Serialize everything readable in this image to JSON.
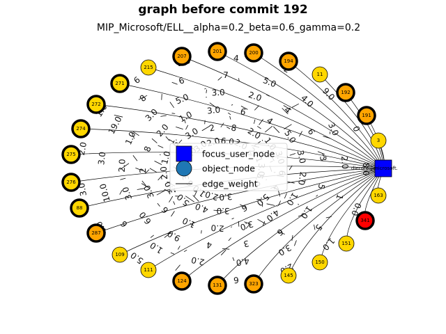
{
  "title": "graph before commit 192",
  "subtitle": "MIP_Microsoft/ELL__alpha=0.2_beta=0.6_gamma=0.2",
  "legend": [
    {
      "label": "focus_user_node",
      "kind": "square",
      "color": "#0000ff"
    },
    {
      "label": "object_node",
      "kind": "circle",
      "color": "#1f77b4"
    },
    {
      "label": "edge_weight",
      "kind": "line",
      "color": "#000000"
    }
  ],
  "focus_node": {
    "label": "dierdre@microsoft.",
    "color": "#0000ff"
  },
  "nodes": [
    {
      "id": "201",
      "fill": "#ffa500",
      "ring": true
    },
    {
      "id": "200",
      "fill": "#ffa500",
      "ring": true
    },
    {
      "id": "194",
      "fill": "#ffa500",
      "ring": true
    },
    {
      "id": "11",
      "fill": "#ffd700",
      "ring": false
    },
    {
      "id": "192",
      "fill": "#ffa500",
      "ring": true
    },
    {
      "id": "191",
      "fill": "#ffa500",
      "ring": true
    },
    {
      "id": "3",
      "fill": "#ffd700",
      "ring": false
    },
    {
      "id": "163",
      "fill": "#ffd700",
      "ring": false
    },
    {
      "id": "341",
      "fill": "#ff0000",
      "ring": true
    },
    {
      "id": "151",
      "fill": "#ffd700",
      "ring": false
    },
    {
      "id": "150",
      "fill": "#ffd700",
      "ring": false
    },
    {
      "id": "145",
      "fill": "#ffd700",
      "ring": false
    },
    {
      "id": "323",
      "fill": "#ffa500",
      "ring": true
    },
    {
      "id": "131",
      "fill": "#ffa500",
      "ring": true
    },
    {
      "id": "124",
      "fill": "#ffa500",
      "ring": true
    },
    {
      "id": "111",
      "fill": "#ffd700",
      "ring": false
    },
    {
      "id": "109",
      "fill": "#ffd700",
      "ring": false
    },
    {
      "id": "287",
      "fill": "#ffa500",
      "ring": true
    },
    {
      "id": "88",
      "fill": "#ffd700",
      "ring": true
    },
    {
      "id": "276",
      "fill": "#ffd700",
      "ring": true
    },
    {
      "id": "275",
      "fill": "#ffd700",
      "ring": true
    },
    {
      "id": "274",
      "fill": "#ffd700",
      "ring": true
    },
    {
      "id": "272",
      "fill": "#ffd700",
      "ring": true
    },
    {
      "id": "271",
      "fill": "#ffd700",
      "ring": true
    },
    {
      "id": "215",
      "fill": "#ffd700",
      "ring": false
    },
    {
      "id": "207",
      "fill": "#ffa500",
      "ring": true
    }
  ],
  "edge_weight_labels": [
    "8.0",
    "0.0",
    "1.0",
    "2.0",
    "6",
    "7.0",
    "5.0",
    "4.0",
    "3.0",
    "2.0",
    "1.0",
    "6",
    "3.0",
    "4",
    "2",
    "9.0",
    "0",
    "1",
    "5",
    "3.0",
    "4.0",
    "2.0",
    "1.0",
    "6",
    "10.0",
    "3.0",
    "19.0",
    "8",
    "6",
    "7",
    "5.0",
    "4.0",
    "3.0",
    "2.0",
    "1.0",
    "6",
    "3",
    "4",
    "9.0",
    "6.0",
    "3.0",
    "2.0",
    "1.0",
    "3.0",
    "5.0",
    "3.0",
    "2.0",
    "4",
    "6",
    "3",
    "5",
    "4.0",
    "3.0",
    "2.0",
    "1.0",
    "6",
    "3.0",
    "2",
    "8",
    "2.0",
    "1.0",
    "3.0",
    "6",
    "4",
    "5.0",
    "3.0",
    "2.0",
    "1.0",
    "6",
    "3.0",
    "4.0",
    "5.0",
    "3.0",
    "2.0",
    "1.0",
    "6",
    "3.0",
    "2",
    "8",
    "2.0",
    "1.0",
    "3.0",
    "6",
    "4",
    "5.0",
    "3.0",
    "2.0",
    "1.0",
    "6",
    "3.0",
    "4.0",
    "5.0",
    "3.0",
    "2.0",
    "6.0",
    "2.0",
    "2",
    "1",
    "3.0",
    "5.0"
  ]
}
